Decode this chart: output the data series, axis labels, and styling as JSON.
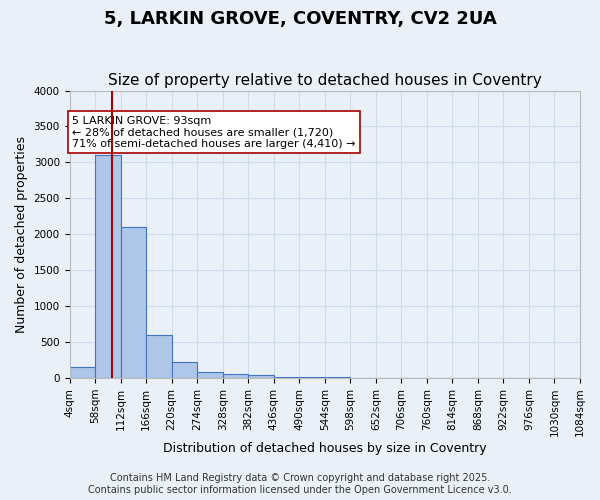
{
  "title": "5, LARKIN GROVE, COVENTRY, CV2 2UA",
  "subtitle": "Size of property relative to detached houses in Coventry",
  "xlabel": "Distribution of detached houses by size in Coventry",
  "ylabel": "Number of detached properties",
  "bin_edges": [
    4,
    58,
    112,
    166,
    220,
    274,
    328,
    382,
    436,
    490,
    544,
    598,
    652,
    706,
    760,
    814,
    868,
    922,
    976,
    1030,
    1084
  ],
  "bar_heights": [
    150,
    3100,
    2100,
    600,
    230,
    80,
    60,
    40,
    20,
    15,
    10,
    8,
    6,
    5,
    4,
    3,
    3,
    2,
    2,
    2
  ],
  "bar_color": "#aec6e8",
  "bar_edge_color": "#4472c4",
  "grid_color": "#ccddee",
  "background_color": "#eaf0f8",
  "property_size": 93,
  "vline_color": "#aa0000",
  "annotation_text": "5 LARKIN GROVE: 93sqm\n← 28% of detached houses are smaller (1,720)\n71% of semi-detached houses are larger (4,410) →",
  "annotation_box_color": "#ffffff",
  "annotation_box_edgecolor": "#aa0000",
  "ylim": [
    0,
    4000
  ],
  "yticks": [
    0,
    500,
    1000,
    1500,
    2000,
    2500,
    3000,
    3500,
    4000
  ],
  "footer_line1": "Contains HM Land Registry data © Crown copyright and database right 2025.",
  "footer_line2": "Contains public sector information licensed under the Open Government Licence v3.0.",
  "title_fontsize": 13,
  "subtitle_fontsize": 11,
  "label_fontsize": 9,
  "tick_fontsize": 7.5,
  "footer_fontsize": 7
}
